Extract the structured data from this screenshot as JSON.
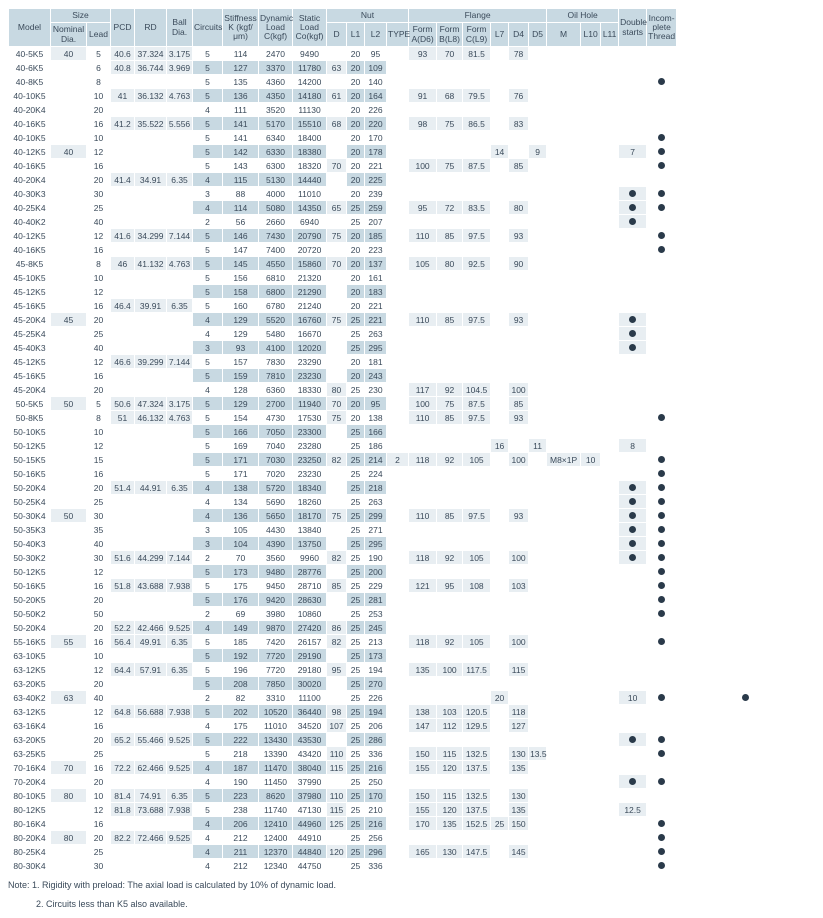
{
  "headers": {
    "model": "Model",
    "size": "Size",
    "nom": "Nominal\nDia.",
    "lead": "Lead",
    "pcd": "PCD",
    "rd": "RD",
    "ball": "Ball\nDia.",
    "circ": "Circuits",
    "stiff": "Stiffness\nK\n(kgf/μm)",
    "dyn": "Dynamic\nLoad\nC(kgf)",
    "stat": "Static\nLoad\nCo(kgf)",
    "nut": "Nut",
    "d": "D",
    "l1": "L1",
    "l2": "L2",
    "type": "TYPE",
    "flange": "Flange",
    "fa": "Form\nA(D6)",
    "fb": "Form\nB(L8)",
    "fc": "Form\nC(L9)",
    "l7": "L7",
    "d4": "D4",
    "d5": "D5",
    "oil": "Oil Hole",
    "m": "M",
    "l10": "L10",
    "l11": "L11",
    "dbl": "Double\nstarts",
    "inc": "Incom-\nplete\nThread"
  },
  "rows": [
    [
      "40-5K5",
      "40g",
      "5",
      "40.6",
      "37.324",
      "3.175",
      "5",
      "114",
      "2470",
      "9490",
      "",
      "20",
      "95",
      "",
      "93",
      "70",
      "81.5",
      "",
      "78",
      "",
      "",
      "",
      "",
      "",
      ""
    ],
    [
      "40-6K5",
      "",
      "6",
      "40.8",
      "36.744",
      "3.969",
      "5b",
      "127b",
      "3370b",
      "11780b",
      "63",
      "20b",
      "109b",
      "",
      "",
      "",
      "",
      "",
      "",
      "",
      "",
      "",
      "",
      "",
      ""
    ],
    [
      "40-8K5",
      "",
      "8",
      "",
      "",
      "",
      "5",
      "135",
      "4360",
      "14200",
      "",
      "20",
      "140",
      "",
      "",
      "",
      "",
      "",
      "",
      "",
      "",
      "",
      "",
      "",
      "d"
    ],
    [
      "40-10K5",
      "",
      "10",
      "41",
      "36.132",
      "4.763",
      "5b",
      "136b",
      "4350b",
      "14180b",
      "61",
      "20b",
      "164b",
      "",
      "91",
      "68",
      "79.5",
      "",
      "76",
      "",
      "",
      "",
      "",
      "",
      ""
    ],
    [
      "40-20K4",
      "",
      "20",
      "",
      "",
      "",
      "4",
      "111",
      "3520",
      "11130",
      "",
      "20",
      "226",
      "",
      "",
      "",
      "",
      "",
      "",
      "",
      "",
      "",
      "",
      "",
      ""
    ],
    [
      "40-16K5",
      "",
      "16",
      "41.2",
      "35.522",
      "5.556",
      "5b",
      "141b",
      "5170b",
      "15510b",
      "68",
      "20b",
      "220b",
      "",
      "98",
      "75",
      "86.5",
      "",
      "83",
      "",
      "",
      "",
      "",
      "",
      ""
    ],
    [
      "40-10K5",
      "",
      "10",
      "",
      "",
      "",
      "5",
      "141",
      "6340",
      "18400",
      "",
      "20",
      "170",
      "",
      "",
      "",
      "",
      "",
      "",
      "",
      "",
      "",
      "",
      "",
      "d"
    ],
    [
      "40-12K5",
      "40",
      "12",
      "",
      "",
      "",
      "5b",
      "142b",
      "6330b",
      "18380b",
      "",
      "20b",
      "178b",
      "",
      "",
      "",
      "",
      "14",
      "",
      "9",
      "",
      "",
      "",
      "7",
      "d"
    ],
    [
      "40-16K5",
      "",
      "16",
      "",
      "",
      "",
      "5",
      "143",
      "6300",
      "18320",
      "70",
      "20",
      "221",
      "",
      "100",
      "75",
      "87.5",
      "",
      "85",
      "",
      "",
      "",
      "",
      "",
      "d"
    ],
    [
      "40-20K4",
      "",
      "20",
      "41.4",
      "34.91",
      "6.35",
      "4b",
      "115b",
      "5130b",
      "14440b",
      "",
      "20b",
      "225b",
      "",
      "",
      "",
      "",
      "",
      "",
      "",
      "",
      "",
      "",
      "",
      ""
    ],
    [
      "40-30K3",
      "",
      "30",
      "",
      "",
      "",
      "3",
      "88",
      "4000",
      "11010",
      "",
      "20",
      "239",
      "",
      "",
      "",
      "",
      "",
      "",
      "",
      "",
      "",
      "",
      "d",
      "d"
    ],
    [
      "40-25K4",
      "",
      "25",
      "",
      "",
      "",
      "4b",
      "114b",
      "5080b",
      "14350b",
      "65",
      "25b",
      "259b",
      "",
      "95",
      "72",
      "83.5",
      "",
      "80",
      "",
      "",
      "",
      "",
      "d",
      "d"
    ],
    [
      "40-40K2",
      "",
      "40",
      "",
      "",
      "",
      "2",
      "56",
      "2660",
      "6940",
      "",
      "25",
      "207",
      "",
      "",
      "",
      "",
      "",
      "",
      "",
      "",
      "",
      "",
      "d",
      ""
    ],
    [
      "40-12K5",
      "",
      "12",
      "41.6",
      "34.299",
      "7.144",
      "5b",
      "146b",
      "7430b",
      "20790b",
      "75",
      "20b",
      "185b",
      "",
      "110",
      "85",
      "97.5",
      "",
      "93",
      "",
      "",
      "",
      "",
      "",
      "d"
    ],
    [
      "40-16K5",
      "",
      "16",
      "",
      "",
      "",
      "5",
      "147",
      "7400",
      "20720",
      "",
      "20",
      "223",
      "",
      "",
      "",
      "",
      "",
      "",
      "",
      "",
      "",
      "",
      "",
      "d"
    ],
    [
      "45-8K5",
      "",
      "8",
      "46",
      "41.132",
      "4.763",
      "5b",
      "145b",
      "4550b",
      "15860b",
      "70",
      "20b",
      "137b",
      "",
      "105",
      "80",
      "92.5",
      "",
      "90",
      "",
      "",
      "",
      "",
      "",
      ""
    ],
    [
      "45-10K5",
      "",
      "10",
      "",
      "",
      "",
      "5",
      "156",
      "6810",
      "21320",
      "",
      "20",
      "161",
      "",
      "",
      "",
      "",
      "",
      "",
      "",
      "",
      "",
      "",
      "",
      ""
    ],
    [
      "45-12K5",
      "",
      "12",
      "",
      "",
      "",
      "5b",
      "158b",
      "6800b",
      "21290b",
      "",
      "20b",
      "183b",
      "",
      "",
      "",
      "",
      "",
      "",
      "",
      "",
      "",
      "",
      "",
      ""
    ],
    [
      "45-16K5",
      "",
      "16",
      "46.4",
      "39.91",
      "6.35",
      "5",
      "160",
      "6780",
      "21240",
      "",
      "20",
      "221",
      "",
      "",
      "",
      "",
      "",
      "",
      "",
      "",
      "",
      "",
      "",
      ""
    ],
    [
      "45-20K4",
      "45",
      "20",
      "",
      "",
      "",
      "4b",
      "129b",
      "5520b",
      "16760b",
      "75",
      "25b",
      "221b",
      "",
      "110",
      "85",
      "97.5",
      "",
      "93",
      "",
      "",
      "",
      "",
      "d",
      ""
    ],
    [
      "45-25K4",
      "",
      "25",
      "",
      "",
      "",
      "4",
      "129",
      "5480",
      "16670",
      "",
      "25",
      "263",
      "",
      "",
      "",
      "",
      "",
      "",
      "",
      "",
      "",
      "",
      "d",
      ""
    ],
    [
      "45-40K3",
      "",
      "40",
      "",
      "",
      "",
      "3b",
      "93b",
      "4100b",
      "12020b",
      "",
      "25b",
      "295b",
      "",
      "",
      "",
      "",
      "",
      "",
      "",
      "",
      "",
      "",
      "d",
      ""
    ],
    [
      "45-12K5",
      "",
      "12",
      "46.6",
      "39.299",
      "7.144",
      "5",
      "157",
      "7830",
      "23290",
      "",
      "20",
      "181",
      "",
      "",
      "",
      "",
      "",
      "",
      "",
      "",
      "",
      "",
      "",
      ""
    ],
    [
      "45-16K5",
      "",
      "16",
      "",
      "",
      "",
      "5b",
      "159b",
      "7810b",
      "23230b",
      "",
      "20b",
      "243b",
      "",
      "",
      "",
      "",
      "",
      "",
      "",
      "",
      "",
      "",
      "",
      ""
    ],
    [
      "45-20K4",
      "",
      "20",
      "",
      "",
      "",
      "4",
      "128",
      "6360",
      "18330",
      "80",
      "25",
      "230",
      "",
      "117",
      "92",
      "104.5",
      "",
      "100",
      "",
      "",
      "",
      "",
      "",
      ""
    ],
    [
      "50-5K5",
      "50g",
      "5",
      "50.6",
      "47.324",
      "3.175",
      "5b",
      "129b",
      "2700b",
      "11940b",
      "70",
      "20b",
      "95b",
      "",
      "100",
      "75",
      "87.5",
      "",
      "85",
      "",
      "",
      "",
      "",
      "",
      ""
    ],
    [
      "50-8K5",
      "",
      "8",
      "51",
      "46.132",
      "4.763",
      "5",
      "154",
      "4730",
      "17530",
      "75",
      "20",
      "138",
      "",
      "110",
      "85",
      "97.5",
      "",
      "93",
      "",
      "",
      "",
      "",
      "",
      "d"
    ],
    [
      "50-10K5",
      "",
      "10",
      "",
      "",
      "",
      "5b",
      "166b",
      "7050b",
      "23300b",
      "",
      "25b",
      "166b",
      "",
      "",
      "",
      "",
      "",
      "",
      "",
      "",
      "",
      "",
      "",
      ""
    ],
    [
      "50-12K5",
      "",
      "12",
      "",
      "",
      "",
      "5",
      "169",
      "7040",
      "23280",
      "",
      "25",
      "186",
      "",
      "",
      "",
      "",
      "16",
      "",
      "11",
      "",
      "",
      "",
      "8",
      ""
    ],
    [
      "50-15K5",
      "",
      "15",
      "",
      "",
      "",
      "5b",
      "171b",
      "7030b",
      "23250b",
      "82",
      "25b",
      "214b",
      "2",
      "118",
      "92",
      "105",
      "",
      "100",
      "",
      "M8×1P",
      "10",
      "",
      "",
      "d"
    ],
    [
      "50-16K5",
      "",
      "16",
      "",
      "",
      "",
      "5",
      "171",
      "7020",
      "23230",
      "",
      "25",
      "224",
      "",
      "",
      "",
      "",
      "",
      "",
      "",
      "",
      "",
      "",
      "",
      "d"
    ],
    [
      "50-20K4",
      "",
      "20",
      "51.4",
      "44.91",
      "6.35",
      "4b",
      "138b",
      "5720b",
      "18340b",
      "",
      "25b",
      "218b",
      "",
      "",
      "",
      "",
      "",
      "",
      "",
      "",
      "",
      "",
      "d",
      "d"
    ],
    [
      "50-25K4",
      "",
      "25",
      "",
      "",
      "",
      "4",
      "134",
      "5690",
      "18260",
      "",
      "25",
      "263",
      "",
      "",
      "",
      "",
      "",
      "",
      "",
      "",
      "",
      "",
      "d",
      "d"
    ],
    [
      "50-30K4",
      "50",
      "30",
      "",
      "",
      "",
      "4b",
      "136b",
      "5650b",
      "18170b",
      "75",
      "25b",
      "299b",
      "",
      "110",
      "85",
      "97.5",
      "",
      "93",
      "",
      "",
      "",
      "",
      "d",
      "d"
    ],
    [
      "50-35K3",
      "",
      "35",
      "",
      "",
      "",
      "3",
      "105",
      "4430",
      "13840",
      "",
      "25",
      "271",
      "",
      "",
      "",
      "",
      "",
      "",
      "",
      "",
      "",
      "",
      "d",
      "d"
    ],
    [
      "50-40K3",
      "",
      "40",
      "",
      "",
      "",
      "3b",
      "104b",
      "4390b",
      "13750b",
      "",
      "25b",
      "295b",
      "",
      "",
      "",
      "",
      "",
      "",
      "",
      "",
      "",
      "",
      "d",
      "d"
    ],
    [
      "50-30K2",
      "",
      "30",
      "51.6",
      "44.299",
      "7.144",
      "2",
      "70",
      "3560",
      "9960",
      "82",
      "25",
      "190",
      "",
      "118",
      "92",
      "105",
      "",
      "100",
      "",
      "",
      "",
      "",
      "d",
      "d"
    ],
    [
      "50-12K5",
      "",
      "12",
      "",
      "",
      "",
      "5b",
      "173b",
      "9480b",
      "28776b",
      "",
      "25b",
      "200b",
      "",
      "",
      "",
      "",
      "",
      "",
      "",
      "",
      "",
      "",
      "",
      "d"
    ],
    [
      "50-16K5",
      "",
      "16",
      "51.8",
      "43.688",
      "7.938",
      "5",
      "175",
      "9450",
      "28710",
      "85",
      "25",
      "229",
      "",
      "121",
      "95",
      "108",
      "",
      "103",
      "",
      "",
      "",
      "",
      "",
      "d"
    ],
    [
      "50-20K5",
      "",
      "20",
      "",
      "",
      "",
      "5b",
      "176b",
      "9420b",
      "28630b",
      "",
      "25b",
      "281b",
      "",
      "",
      "",
      "",
      "",
      "",
      "",
      "",
      "",
      "",
      "",
      "d"
    ],
    [
      "50-50K2",
      "",
      "50",
      "",
      "",
      "",
      "2",
      "69",
      "3980",
      "10860",
      "",
      "25",
      "253",
      "",
      "",
      "",
      "",
      "",
      "",
      "",
      "",
      "",
      "",
      "",
      "d"
    ],
    [
      "50-20K4",
      "",
      "20",
      "52.2",
      "42.466",
      "9.525",
      "4b",
      "149b",
      "9870b",
      "27420b",
      "86",
      "25b",
      "245b",
      "",
      "",
      "",
      "",
      "",
      "",
      "",
      "",
      "",
      "",
      "",
      ""
    ],
    [
      "55-16K5",
      "55",
      "16",
      "56.4",
      "49.91",
      "6.35",
      "5",
      "185",
      "7420",
      "26157",
      "82",
      "25",
      "213",
      "",
      "118",
      "92",
      "105",
      "",
      "100",
      "",
      "",
      "",
      "",
      "",
      "d"
    ],
    [
      "63-10K5",
      "",
      "10",
      "",
      "",
      "",
      "5b",
      "192b",
      "7720b",
      "29190b",
      "",
      "25b",
      "173b",
      "",
      "",
      "",
      "",
      "",
      "",
      "",
      "",
      "",
      "",
      "",
      ""
    ],
    [
      "63-12K5",
      "",
      "12",
      "64.4",
      "57.91",
      "6.35",
      "5",
      "196",
      "7720",
      "29180",
      "95",
      "25",
      "194",
      "",
      "135",
      "100",
      "117.5",
      "",
      "115",
      "",
      "",
      "",
      "",
      "",
      ""
    ],
    [
      "63-20K5",
      "",
      "20",
      "",
      "",
      "",
      "5b",
      "208b",
      "7850b",
      "30020b",
      "",
      "25b",
      "270b",
      "",
      "",
      "",
      "",
      "",
      "",
      "",
      "",
      "",
      "",
      "",
      ""
    ],
    [
      "63-40K2",
      "63",
      "40",
      "",
      "",
      "",
      "2",
      "82",
      "3310",
      "11100",
      "",
      "25",
      "226",
      "",
      "",
      "",
      "",
      "20",
      "",
      "",
      "",
      "",
      "",
      "10",
      "d",
      "d"
    ],
    [
      "63-12K5",
      "",
      "12",
      "64.8",
      "56.688",
      "7.938",
      "5b",
      "202b",
      "10520b",
      "36440b",
      "98",
      "25b",
      "194b",
      "",
      "138",
      "103",
      "120.5",
      "",
      "118",
      "",
      "",
      "",
      "",
      "",
      ""
    ],
    [
      "63-16K4",
      "",
      "16",
      "",
      "",
      "",
      "4",
      "175",
      "11010",
      "34520",
      "107",
      "25",
      "206",
      "",
      "147",
      "112",
      "129.5",
      "",
      "127",
      "",
      "",
      "",
      "",
      "",
      ""
    ],
    [
      "63-20K5",
      "",
      "20",
      "65.2",
      "55.466",
      "9.525",
      "5b",
      "222b",
      "13430b",
      "43530b",
      "",
      "25b",
      "286b",
      "",
      "",
      "",
      "",
      "",
      "",
      "",
      "",
      "",
      "",
      "d",
      "d"
    ],
    [
      "63-25K5",
      "",
      "25",
      "",
      "",
      "",
      "5",
      "218",
      "13390",
      "43420",
      "110",
      "25",
      "336",
      "",
      "150",
      "115",
      "132.5",
      "",
      "130",
      "13.5",
      "",
      "",
      "",
      "",
      "d"
    ],
    [
      "70-16K4",
      "70",
      "16",
      "72.2",
      "62.466",
      "9.525",
      "4b",
      "187b",
      "11470b",
      "38040b",
      "115",
      "25b",
      "216b",
      "",
      "155",
      "120",
      "137.5",
      "",
      "135",
      "",
      "",
      "",
      "",
      "",
      ""
    ],
    [
      "70-20K4",
      "",
      "20",
      "",
      "",
      "",
      "4",
      "190",
      "11450",
      "37990",
      "",
      "25",
      "250",
      "",
      "",
      "",
      "",
      "",
      "",
      "",
      "",
      "",
      "",
      "d",
      "d"
    ],
    [
      "80-10K5",
      "80g",
      "10",
      "81.4",
      "74.91",
      "6.35",
      "5b",
      "223b",
      "8620b",
      "37980b",
      "110",
      "25b",
      "170b",
      "",
      "150",
      "115",
      "132.5",
      "",
      "130",
      "",
      "",
      "",
      "",
      "",
      ""
    ],
    [
      "80-12K5",
      "",
      "12",
      "81.8",
      "73.688",
      "7.938",
      "5",
      "238",
      "11740",
      "47130",
      "115",
      "25",
      "210",
      "",
      "155",
      "120",
      "137.5",
      "",
      "135",
      "",
      "",
      "",
      "",
      "12.5",
      ""
    ],
    [
      "80-16K4",
      "",
      "16",
      "",
      "",
      "",
      "4b",
      "206b",
      "12410b",
      "44960b",
      "125",
      "25b",
      "216b",
      "",
      "170",
      "135",
      "152.5",
      "25",
      "150",
      "",
      "",
      "",
      "",
      "",
      "d"
    ],
    [
      "80-20K4",
      "80",
      "20",
      "82.2",
      "72.466",
      "9.525",
      "4",
      "212",
      "12400",
      "44910",
      "",
      "25",
      "256",
      "",
      "",
      "",
      "",
      "",
      "",
      "",
      "",
      "",
      "",
      "",
      "d"
    ],
    [
      "80-25K4",
      "",
      "25",
      "",
      "",
      "",
      "4b",
      "211b",
      "12370b",
      "44840b",
      "120",
      "25b",
      "296b",
      "",
      "165",
      "130",
      "147.5",
      "",
      "145",
      "",
      "",
      "",
      "",
      "",
      "d"
    ],
    [
      "80-30K4",
      "",
      "30",
      "",
      "",
      "",
      "4",
      "212",
      "12340",
      "44750",
      "",
      "25",
      "336",
      "",
      "",
      "",
      "",
      "",
      "",
      "",
      "",
      "",
      "",
      "",
      "d"
    ]
  ],
  "notes": [
    "Note: 1. Rigidity with preload: The axial load is calculated by 10% of dynamic load.",
    "2. Circuits less than K5 also available."
  ]
}
